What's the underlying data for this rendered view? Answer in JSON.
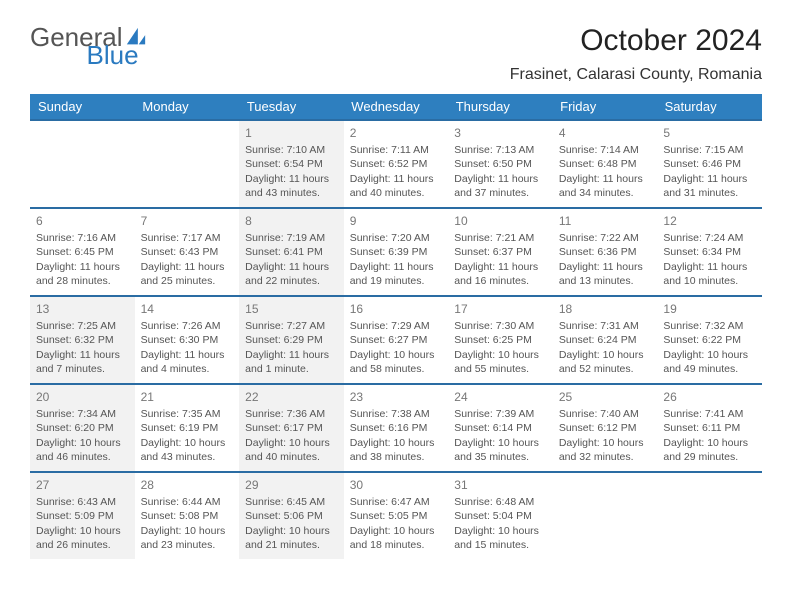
{
  "logo": {
    "text_general": "General",
    "text_blue": "Blue"
  },
  "title": "October 2024",
  "location": "Frasinet, Calarasi County, Romania",
  "header_bg": "#2e7fbf",
  "week_border": "#2a6ca3",
  "shaded_bg": "#f2f2f2",
  "day_names": [
    "Sunday",
    "Monday",
    "Tuesday",
    "Wednesday",
    "Thursday",
    "Friday",
    "Saturday"
  ],
  "weeks": [
    [
      {
        "day": "",
        "lines": [],
        "shaded": false
      },
      {
        "day": "",
        "lines": [],
        "shaded": false
      },
      {
        "day": "1",
        "lines": [
          "Sunrise: 7:10 AM",
          "Sunset: 6:54 PM",
          "Daylight: 11 hours and 43 minutes."
        ],
        "shaded": true
      },
      {
        "day": "2",
        "lines": [
          "Sunrise: 7:11 AM",
          "Sunset: 6:52 PM",
          "Daylight: 11 hours and 40 minutes."
        ],
        "shaded": false
      },
      {
        "day": "3",
        "lines": [
          "Sunrise: 7:13 AM",
          "Sunset: 6:50 PM",
          "Daylight: 11 hours and 37 minutes."
        ],
        "shaded": false
      },
      {
        "day": "4",
        "lines": [
          "Sunrise: 7:14 AM",
          "Sunset: 6:48 PM",
          "Daylight: 11 hours and 34 minutes."
        ],
        "shaded": false
      },
      {
        "day": "5",
        "lines": [
          "Sunrise: 7:15 AM",
          "Sunset: 6:46 PM",
          "Daylight: 11 hours and 31 minutes."
        ],
        "shaded": false
      }
    ],
    [
      {
        "day": "6",
        "lines": [
          "Sunrise: 7:16 AM",
          "Sunset: 6:45 PM",
          "Daylight: 11 hours and 28 minutes."
        ],
        "shaded": false
      },
      {
        "day": "7",
        "lines": [
          "Sunrise: 7:17 AM",
          "Sunset: 6:43 PM",
          "Daylight: 11 hours and 25 minutes."
        ],
        "shaded": false
      },
      {
        "day": "8",
        "lines": [
          "Sunrise: 7:19 AM",
          "Sunset: 6:41 PM",
          "Daylight: 11 hours and 22 minutes."
        ],
        "shaded": true
      },
      {
        "day": "9",
        "lines": [
          "Sunrise: 7:20 AM",
          "Sunset: 6:39 PM",
          "Daylight: 11 hours and 19 minutes."
        ],
        "shaded": false
      },
      {
        "day": "10",
        "lines": [
          "Sunrise: 7:21 AM",
          "Sunset: 6:37 PM",
          "Daylight: 11 hours and 16 minutes."
        ],
        "shaded": false
      },
      {
        "day": "11",
        "lines": [
          "Sunrise: 7:22 AM",
          "Sunset: 6:36 PM",
          "Daylight: 11 hours and 13 minutes."
        ],
        "shaded": false
      },
      {
        "day": "12",
        "lines": [
          "Sunrise: 7:24 AM",
          "Sunset: 6:34 PM",
          "Daylight: 11 hours and 10 minutes."
        ],
        "shaded": false
      }
    ],
    [
      {
        "day": "13",
        "lines": [
          "Sunrise: 7:25 AM",
          "Sunset: 6:32 PM",
          "Daylight: 11 hours and 7 minutes."
        ],
        "shaded": true
      },
      {
        "day": "14",
        "lines": [
          "Sunrise: 7:26 AM",
          "Sunset: 6:30 PM",
          "Daylight: 11 hours and 4 minutes."
        ],
        "shaded": false
      },
      {
        "day": "15",
        "lines": [
          "Sunrise: 7:27 AM",
          "Sunset: 6:29 PM",
          "Daylight: 11 hours and 1 minute."
        ],
        "shaded": true
      },
      {
        "day": "16",
        "lines": [
          "Sunrise: 7:29 AM",
          "Sunset: 6:27 PM",
          "Daylight: 10 hours and 58 minutes."
        ],
        "shaded": false
      },
      {
        "day": "17",
        "lines": [
          "Sunrise: 7:30 AM",
          "Sunset: 6:25 PM",
          "Daylight: 10 hours and 55 minutes."
        ],
        "shaded": false
      },
      {
        "day": "18",
        "lines": [
          "Sunrise: 7:31 AM",
          "Sunset: 6:24 PM",
          "Daylight: 10 hours and 52 minutes."
        ],
        "shaded": false
      },
      {
        "day": "19",
        "lines": [
          "Sunrise: 7:32 AM",
          "Sunset: 6:22 PM",
          "Daylight: 10 hours and 49 minutes."
        ],
        "shaded": false
      }
    ],
    [
      {
        "day": "20",
        "lines": [
          "Sunrise: 7:34 AM",
          "Sunset: 6:20 PM",
          "Daylight: 10 hours and 46 minutes."
        ],
        "shaded": true
      },
      {
        "day": "21",
        "lines": [
          "Sunrise: 7:35 AM",
          "Sunset: 6:19 PM",
          "Daylight: 10 hours and 43 minutes."
        ],
        "shaded": false
      },
      {
        "day": "22",
        "lines": [
          "Sunrise: 7:36 AM",
          "Sunset: 6:17 PM",
          "Daylight: 10 hours and 40 minutes."
        ],
        "shaded": true
      },
      {
        "day": "23",
        "lines": [
          "Sunrise: 7:38 AM",
          "Sunset: 6:16 PM",
          "Daylight: 10 hours and 38 minutes."
        ],
        "shaded": false
      },
      {
        "day": "24",
        "lines": [
          "Sunrise: 7:39 AM",
          "Sunset: 6:14 PM",
          "Daylight: 10 hours and 35 minutes."
        ],
        "shaded": false
      },
      {
        "day": "25",
        "lines": [
          "Sunrise: 7:40 AM",
          "Sunset: 6:12 PM",
          "Daylight: 10 hours and 32 minutes."
        ],
        "shaded": false
      },
      {
        "day": "26",
        "lines": [
          "Sunrise: 7:41 AM",
          "Sunset: 6:11 PM",
          "Daylight: 10 hours and 29 minutes."
        ],
        "shaded": false
      }
    ],
    [
      {
        "day": "27",
        "lines": [
          "Sunrise: 6:43 AM",
          "Sunset: 5:09 PM",
          "Daylight: 10 hours and 26 minutes."
        ],
        "shaded": true
      },
      {
        "day": "28",
        "lines": [
          "Sunrise: 6:44 AM",
          "Sunset: 5:08 PM",
          "Daylight: 10 hours and 23 minutes."
        ],
        "shaded": false
      },
      {
        "day": "29",
        "lines": [
          "Sunrise: 6:45 AM",
          "Sunset: 5:06 PM",
          "Daylight: 10 hours and 21 minutes."
        ],
        "shaded": true
      },
      {
        "day": "30",
        "lines": [
          "Sunrise: 6:47 AM",
          "Sunset: 5:05 PM",
          "Daylight: 10 hours and 18 minutes."
        ],
        "shaded": false
      },
      {
        "day": "31",
        "lines": [
          "Sunrise: 6:48 AM",
          "Sunset: 5:04 PM",
          "Daylight: 10 hours and 15 minutes."
        ],
        "shaded": false
      },
      {
        "day": "",
        "lines": [],
        "shaded": false
      },
      {
        "day": "",
        "lines": [],
        "shaded": false
      }
    ]
  ]
}
